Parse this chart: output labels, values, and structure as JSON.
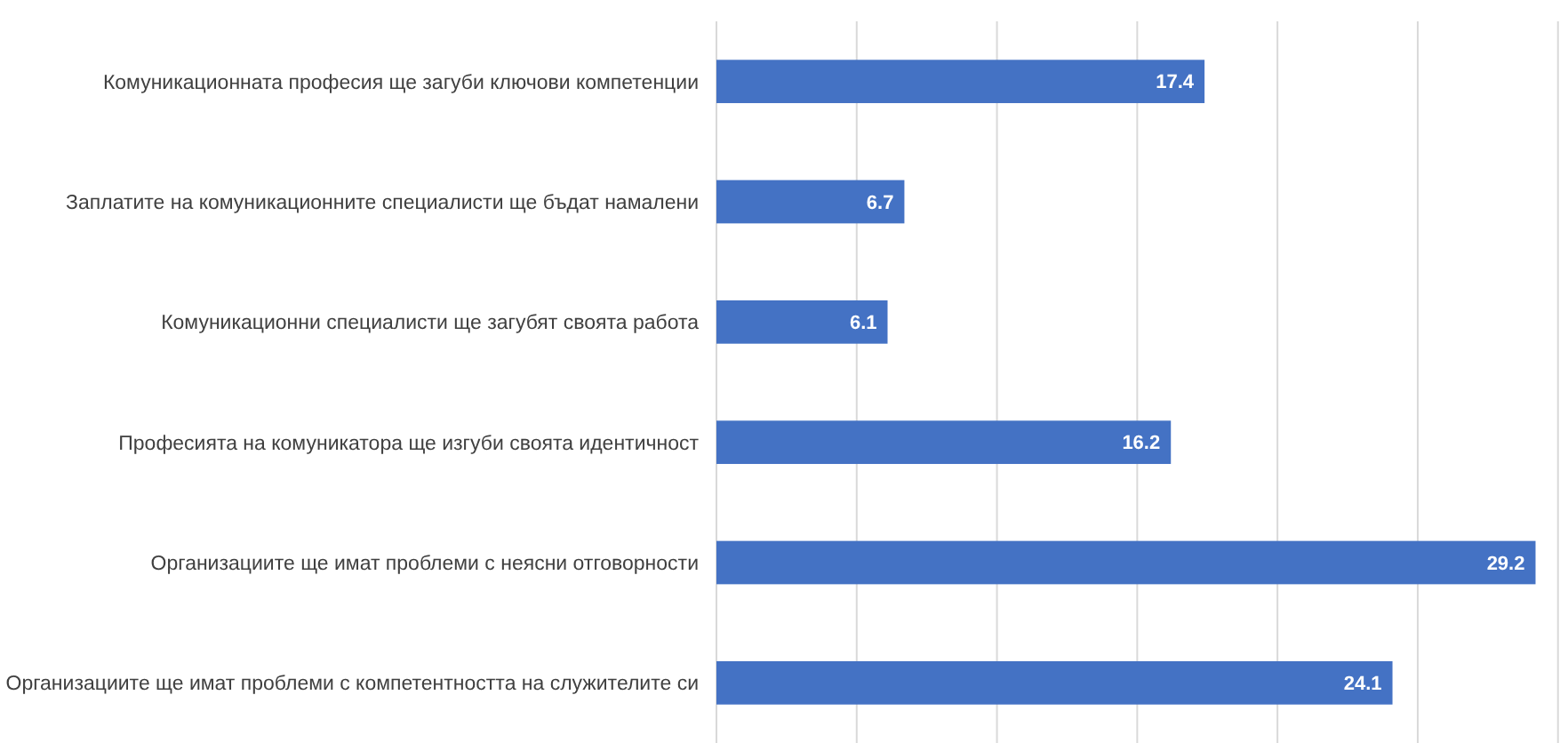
{
  "chart_data": {
    "type": "bar",
    "orientation": "horizontal",
    "categories": [
      "Комуникационната професия ще загуби ключови компетенции",
      "Заплатите на комуникационните специалисти ще бъдат намалени",
      "Комуникационни специалисти ще загубят своята работа",
      "Професията на комуникатора ще изгуби своята идентичност",
      "Организациите ще имат проблеми с неясни отговорности",
      "Организациите ще имат проблеми с компетентността на служителите си"
    ],
    "values": [
      17.4,
      6.7,
      6.1,
      16.2,
      29.2,
      24.1
    ],
    "color": "#4472c4",
    "data_labels": true,
    "grid": "x",
    "tick_labels": "y",
    "xlim": [
      0,
      30
    ],
    "xticks": [
      {
        "value": 0,
        "label": null
      },
      {
        "value": 5,
        "label": null
      },
      {
        "value": 10,
        "label": null
      },
      {
        "value": 15,
        "label": null
      },
      {
        "value": 20,
        "label": null
      },
      {
        "value": 25,
        "label": null
      },
      {
        "value": 30,
        "label": null
      }
    ]
  }
}
